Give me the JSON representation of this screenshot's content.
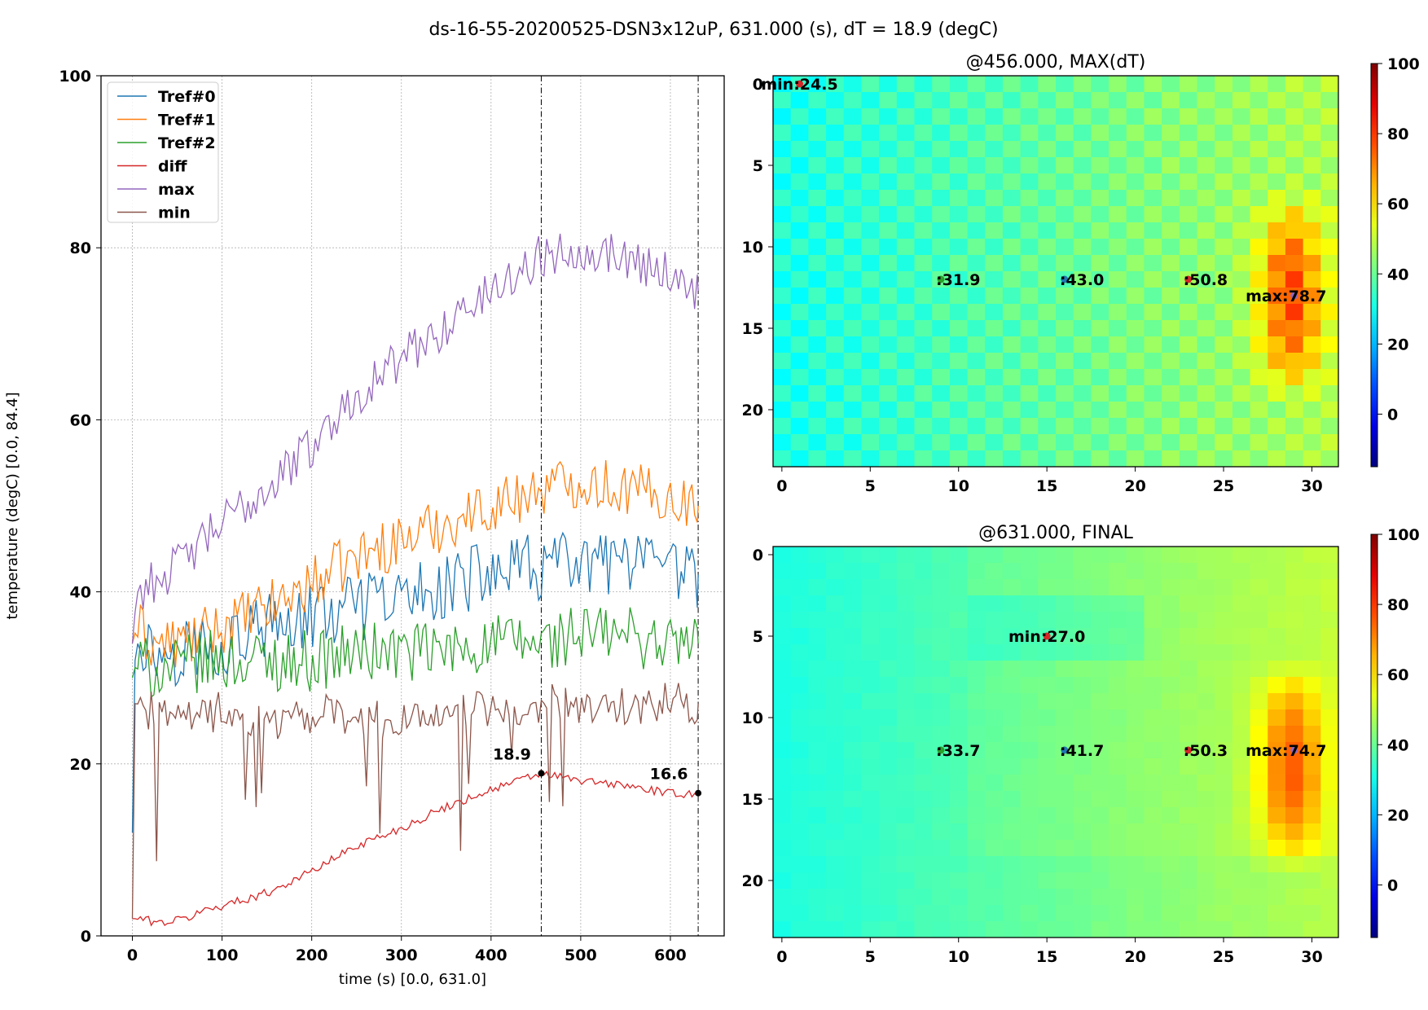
{
  "suptitle": "ds-16-55-20200525-DSN3x12uP, 631.000 (s), dT = 18.9 (degC)",
  "chart_data": [
    {
      "type": "line",
      "xlabel": "time (s) [0.0, 631.0]",
      "ylabel": "temperature (degC) [0.0, 84.4]",
      "xlim": [
        -35,
        660
      ],
      "ylim": [
        0,
        100
      ],
      "xticks": [
        0,
        100,
        200,
        300,
        400,
        500,
        600
      ],
      "yticks": [
        0,
        20,
        40,
        60,
        80,
        100
      ],
      "grid": true,
      "legend_position": "top-left",
      "vlines": [
        456,
        631
      ],
      "series": [
        {
          "name": "Tref#0",
          "color": "#1f77b4",
          "points": [
            [
              0,
              12
            ],
            [
              2,
              30
            ],
            [
              5,
              36
            ],
            [
              20,
              33
            ],
            [
              50,
              33
            ],
            [
              80,
              34
            ],
            [
              100,
              34
            ],
            [
              130,
              35
            ],
            [
              160,
              36
            ],
            [
              200,
              37
            ],
            [
              250,
              38
            ],
            [
              300,
              39
            ],
            [
              350,
              41
            ],
            [
              400,
              42
            ],
            [
              456,
              43
            ],
            [
              500,
              43
            ],
            [
              550,
              43
            ],
            [
              600,
              42
            ],
            [
              631,
              42
            ]
          ]
        },
        {
          "name": "Tref#1",
          "color": "#ff7f0e",
          "points": [
            [
              0,
              34
            ],
            [
              5,
              36
            ],
            [
              20,
              34
            ],
            [
              50,
              34
            ],
            [
              80,
              35
            ],
            [
              100,
              36
            ],
            [
              150,
              38
            ],
            [
              200,
              41
            ],
            [
              250,
              44
            ],
            [
              300,
              46
            ],
            [
              350,
              48
            ],
            [
              400,
              50
            ],
            [
              456,
              52
            ],
            [
              500,
              53
            ],
            [
              550,
              52
            ],
            [
              600,
              51
            ],
            [
              631,
              50
            ]
          ]
        },
        {
          "name": "Tref#2",
          "color": "#2ca02c",
          "points": [
            [
              0,
              30
            ],
            [
              5,
              32
            ],
            [
              20,
              31
            ],
            [
              50,
              31
            ],
            [
              80,
              32
            ],
            [
              100,
              32
            ],
            [
              150,
              32
            ],
            [
              200,
              32
            ],
            [
              250,
              33
            ],
            [
              300,
              33
            ],
            [
              350,
              33
            ],
            [
              400,
              34
            ],
            [
              456,
              34
            ],
            [
              500,
              35
            ],
            [
              550,
              35
            ],
            [
              600,
              34
            ],
            [
              631,
              34
            ]
          ]
        },
        {
          "name": "diff",
          "color": "#d62728",
          "points": [
            [
              0,
              2
            ],
            [
              10,
              2
            ],
            [
              30,
              1.5
            ],
            [
              60,
              2
            ],
            [
              80,
              3
            ],
            [
              100,
              3.5
            ],
            [
              150,
              5
            ],
            [
              200,
              7.5
            ],
            [
              250,
              10.5
            ],
            [
              300,
              12.5
            ],
            [
              350,
              15
            ],
            [
              400,
              17
            ],
            [
              456,
              18.9
            ],
            [
              500,
              18
            ],
            [
              550,
              17.5
            ],
            [
              600,
              16.5
            ],
            [
              631,
              16.6
            ]
          ]
        },
        {
          "name": "max",
          "color": "#9467bd",
          "points": [
            [
              0,
              34
            ],
            [
              5,
              40
            ],
            [
              20,
              41
            ],
            [
              50,
              43
            ],
            [
              80,
              46
            ],
            [
              100,
              48
            ],
            [
              150,
              52
            ],
            [
              200,
              57
            ],
            [
              250,
              63
            ],
            [
              300,
              67
            ],
            [
              350,
              71
            ],
            [
              400,
              75
            ],
            [
              456,
              79
            ],
            [
              500,
              80
            ],
            [
              550,
              79
            ],
            [
              600,
              77
            ],
            [
              631,
              75
            ]
          ]
        },
        {
          "name": "min",
          "color": "#8c564b",
          "points": [
            [
              0,
              2
            ],
            [
              3,
              27
            ],
            [
              20,
              26
            ],
            [
              50,
              26
            ],
            [
              80,
              26
            ],
            [
              100,
              26
            ],
            [
              150,
              25
            ],
            [
              200,
              26
            ],
            [
              250,
              25
            ],
            [
              300,
              25
            ],
            [
              350,
              26
            ],
            [
              400,
              26
            ],
            [
              456,
              27
            ],
            [
              500,
              27
            ],
            [
              550,
              27
            ],
            [
              600,
              27
            ],
            [
              631,
              27
            ]
          ]
        }
      ],
      "annotations": [
        {
          "x": 456,
          "y": 18.9,
          "label": "18.9"
        },
        {
          "x": 631,
          "y": 16.6,
          "label": "16.6"
        }
      ]
    },
    {
      "type": "heatmap",
      "title": "@456.000, MAX(dT)",
      "xticks": [
        0,
        5,
        10,
        15,
        20,
        25,
        30
      ],
      "yticks": [
        0,
        5,
        10,
        15,
        20
      ],
      "colorbar_ticks": [
        0,
        20,
        40,
        60,
        80,
        100
      ],
      "colorbar_range": [
        -15,
        100
      ],
      "base_value": 31,
      "checker": true,
      "hotspot_peak": 78.7,
      "markers": [
        {
          "col": 1,
          "row": 0,
          "label": "min:24.5",
          "color": "#d62728"
        },
        {
          "col": 9,
          "row": 12,
          "label": ":31.9",
          "color": "#2ca02c"
        },
        {
          "col": 16,
          "row": 12,
          "label": ":43.0",
          "color": "#1f77b4"
        },
        {
          "col": 23,
          "row": 12,
          "label": ":50.8",
          "color": "#d62728"
        },
        {
          "col": 29,
          "row": 13,
          "label": "max:78.7",
          "color": "#9467bd"
        }
      ]
    },
    {
      "type": "heatmap",
      "title": "@631.000, FINAL",
      "xticks": [
        0,
        5,
        10,
        15,
        20,
        25,
        30
      ],
      "yticks": [
        0,
        5,
        10,
        15,
        20
      ],
      "colorbar_ticks": [
        0,
        20,
        40,
        60,
        80,
        100
      ],
      "colorbar_range": [
        -15,
        100
      ],
      "base_value": 33,
      "checker": false,
      "hotspot_peak": 74.7,
      "markers": [
        {
          "col": 15,
          "row": 5,
          "label": "min:27.0",
          "color": "#d62728"
        },
        {
          "col": 9,
          "row": 12,
          "label": ":33.7",
          "color": "#2ca02c"
        },
        {
          "col": 16,
          "row": 12,
          "label": ":41.7",
          "color": "#1f77b4"
        },
        {
          "col": 23,
          "row": 12,
          "label": ":50.3",
          "color": "#d62728"
        },
        {
          "col": 29,
          "row": 12,
          "label": "max:74.7",
          "color": "#9467bd"
        }
      ]
    }
  ]
}
